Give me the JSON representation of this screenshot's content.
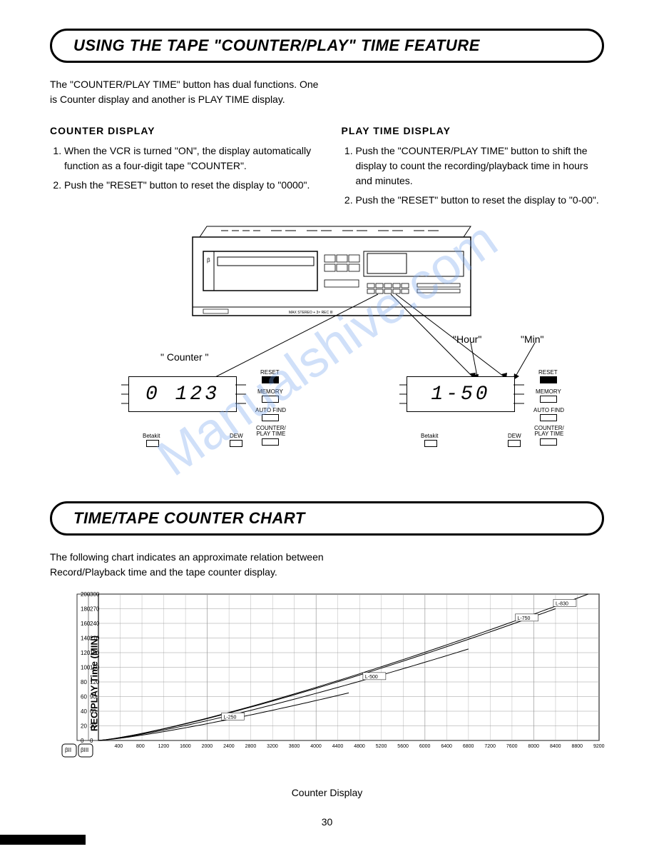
{
  "section1": {
    "title": "USING THE TAPE \"COUNTER/PLAY\" TIME FEATURE",
    "intro": "The \"COUNTER/PLAY TIME\" button has dual functions. One is Counter display and another is PLAY TIME display."
  },
  "counter_display": {
    "header": "COUNTER DISPLAY",
    "item1": "When the VCR is turned \"ON\", the display automatically function as a four-digit tape \"COUNTER\".",
    "item2": "Push the \"RESET\" button to reset the display to \"0000\"."
  },
  "playtime_display": {
    "header": "PLAY TIME DISPLAY",
    "item1": "Push the \"COUNTER/PLAY TIME\" button to shift the display to count the recording/playback time in hours and minutes.",
    "item2": "Push the \"RESET\" button to reset the display to \"0-00\"."
  },
  "diagram": {
    "counter_label": "\" Counter \"",
    "hour_label": "\"Hour\"",
    "min_label": "\"Min\"",
    "lcd_counter": "0 123",
    "lcd_time": "1-50",
    "btn_reset": "RESET",
    "btn_memory": "MEMORY",
    "btn_autofind": "AUTO FIND",
    "btn_counterplay": "COUNTER/\nPLAY TIME",
    "btn_betakit": "Betakit",
    "btn_dew": "DEW"
  },
  "section2": {
    "title": "TIME/TAPE COUNTER CHART",
    "intro": "The following chart indicates an approximate relation between Record/Playback time and the tape counter display."
  },
  "chart": {
    "y_label": "REC/PLAY Time (MIN)",
    "x_label": "Counter Display",
    "x_min": 0,
    "x_max": 9200,
    "x_tick_step": 400,
    "x_ticks": [
      "400",
      "800",
      "1200",
      "1600",
      "2000",
      "2400",
      "2800",
      "3200",
      "3600",
      "4000",
      "4400",
      "4800",
      "5200",
      "5600",
      "6000",
      "6400",
      "6800",
      "7200",
      "7600",
      "8000",
      "8400",
      "8800",
      "9200"
    ],
    "y_left_ticks": [
      "200",
      "180",
      "160",
      "140",
      "120",
      "100",
      "80",
      "60",
      "40",
      "20",
      "0"
    ],
    "y_right_ticks": [
      "300",
      "270",
      "240",
      "210",
      "180",
      "150",
      "120",
      "90",
      "60",
      "30",
      "0"
    ],
    "series_labels": {
      "l830": "L-830",
      "l750": "L-750",
      "l500": "L-500",
      "l250": "L-250"
    },
    "line_color": "#000000",
    "grid_color": "#999999",
    "background": "#ffffff",
    "bii_label": "βII",
    "biii_label": "βIII"
  },
  "watermark_text": "Manualshive.com",
  "page_number": "30"
}
